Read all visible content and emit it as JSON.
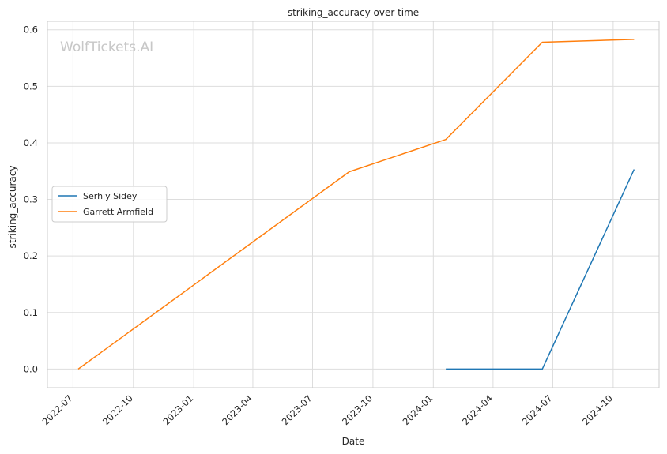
{
  "chart_data": {
    "type": "line",
    "title": "striking_accuracy over time",
    "xlabel": "Date",
    "ylabel": "striking_accuracy",
    "watermark": "WolfTickets.AI",
    "x_axis_type": "date",
    "xlim": [
      "2022-05-23",
      "2024-12-10"
    ],
    "ylim": [
      -0.033,
      0.615
    ],
    "x_ticks": [
      "2022-07",
      "2022-10",
      "2023-01",
      "2023-04",
      "2023-07",
      "2023-10",
      "2024-01",
      "2024-04",
      "2024-07",
      "2024-10"
    ],
    "y_ticks": [
      0.0,
      0.1,
      0.2,
      0.3,
      0.4,
      0.5,
      0.6
    ],
    "y_tick_labels": [
      "0.0",
      "0.1",
      "0.2",
      "0.3",
      "0.4",
      "0.5",
      "0.6"
    ],
    "grid": true,
    "legend_position": "center-left",
    "series": [
      {
        "name": "Serhiy Sidey",
        "color": "#1f77b4",
        "x": [
          "2024-01-20",
          "2024-06-15",
          "2024-11-02"
        ],
        "values": [
          0.0,
          0.0,
          0.353
        ]
      },
      {
        "name": "Garrett Armfield",
        "color": "#ff7f0e",
        "x": [
          "2022-07-09",
          "2023-08-26",
          "2024-01-20",
          "2024-06-15",
          "2024-11-02"
        ],
        "values": [
          0.0,
          0.349,
          0.406,
          0.578,
          0.583
        ]
      }
    ]
  }
}
